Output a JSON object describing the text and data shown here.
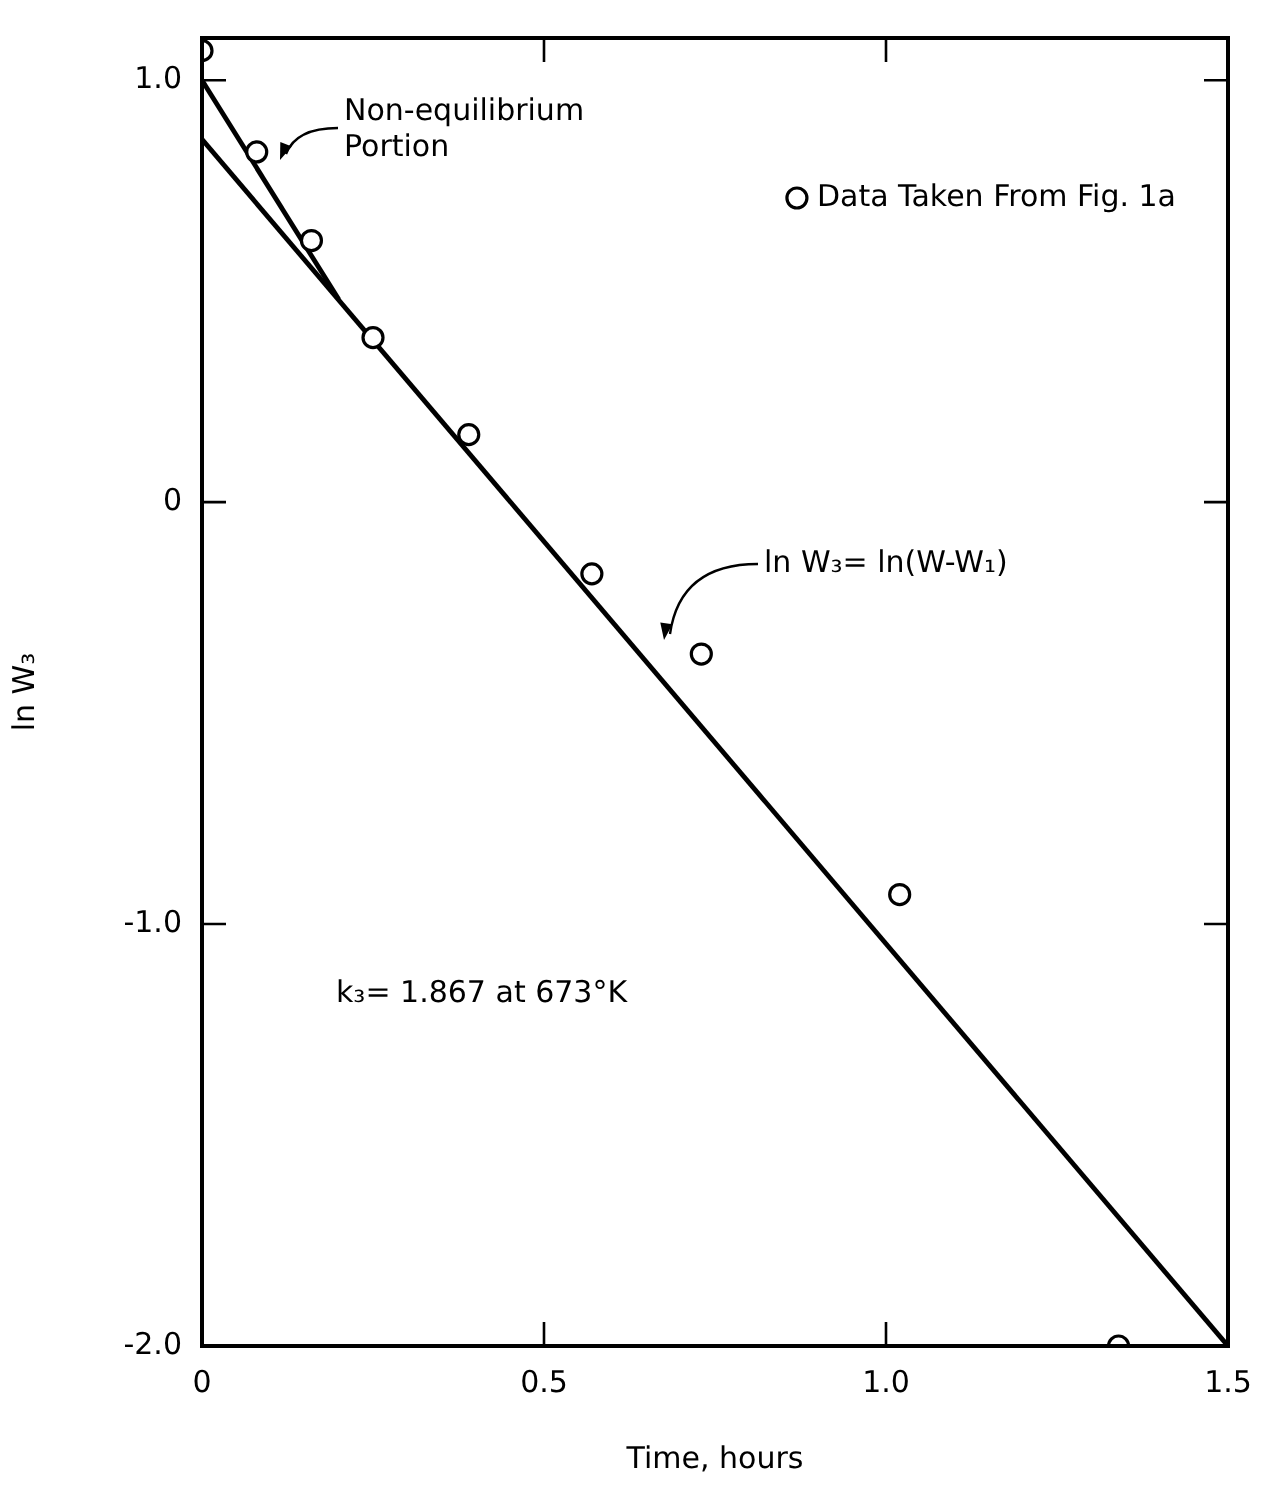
{
  "chart_data": {
    "type": "scatter",
    "xlabel": "Time, hours",
    "ylabel": "ln W₃",
    "xlim": [
      0,
      1.5
    ],
    "xticks": [
      0,
      0.5,
      {
        "value": 1,
        "label": "1.0"
      },
      1.5
    ],
    "ylim": [
      -2.0,
      1.1
    ],
    "yticks": [
      {
        "value": -2,
        "label": "-2.0"
      },
      {
        "value": -1,
        "label": "-1.0"
      },
      0,
      {
        "value": 1,
        "label": "1.0"
      }
    ],
    "grid": false,
    "legend": "top right",
    "marker": "circle",
    "series": [
      {
        "name": "Data Taken From Fig. 1a",
        "color": "#000000",
        "x": [
          0,
          0.08,
          0.16,
          0.25,
          0.39,
          0.57,
          0.73,
          1.02,
          1.34
        ],
        "values": [
          1.07,
          0.83,
          0.62,
          0.39,
          0.16,
          -0.17,
          -0.36,
          -0.93,
          -2.0
        ]
      },
      {
        "type": "line",
        "color": "#000000",
        "line_style": "solid",
        "marker": "none",
        "x": [
          0,
          1.5
        ],
        "values": [
          0.86,
          -2.0
        ]
      },
      {
        "type": "line",
        "color": "#000000",
        "line_style": "solid",
        "marker": "none",
        "x": [
          0,
          0.2
        ],
        "values": [
          1.0,
          0.48
        ]
      }
    ],
    "annotations": [
      "Non-equilibrium Portion",
      "ln W₃= ln(W-W₁)",
      "k₃= 1.867 at 673°K"
    ]
  }
}
